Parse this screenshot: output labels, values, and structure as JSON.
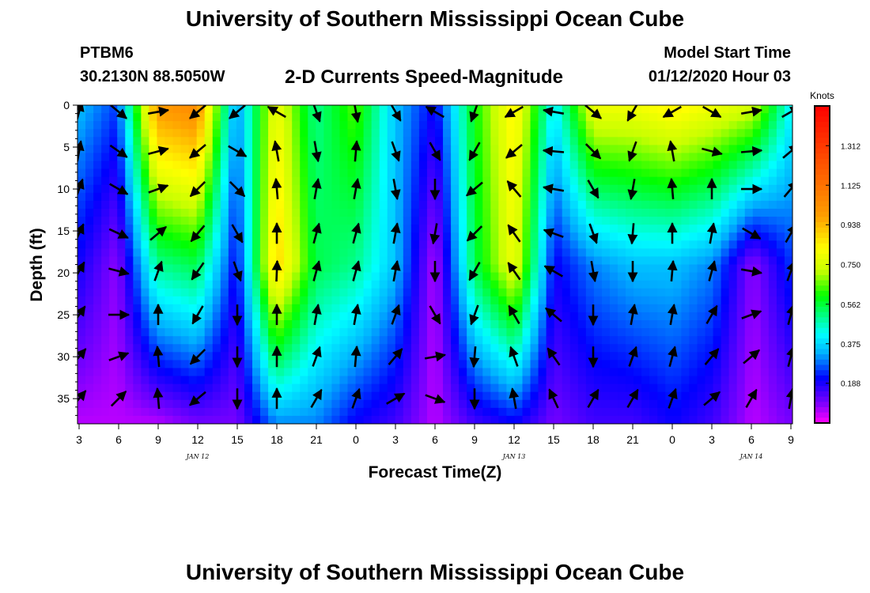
{
  "header": {
    "title": "University of Southern Mississippi Ocean Cube",
    "station_id": "PTBM6",
    "station_coords": "30.2130N 88.5050W",
    "plot_title": "2-D Currents Speed-Magnitude",
    "model_label": "Model Start Time",
    "model_date": "01/12/2020 Hour 03"
  },
  "footer": {
    "title": "University of Southern Mississippi Ocean Cube"
  },
  "chart_data": {
    "type": "heatmap",
    "title": "2-D Currents Speed-Magnitude",
    "xlabel": "Forecast Time(Z)",
    "ylabel": "Depth (ft)",
    "x_tick_labels": [
      "3",
      "6",
      "9",
      "12",
      "15",
      "18",
      "21",
      "0",
      "3",
      "6",
      "9",
      "12",
      "15",
      "18",
      "21",
      "0",
      "3",
      "6",
      "9"
    ],
    "date_labels": [
      {
        "text": "JAN 12",
        "tick_index": 3
      },
      {
        "text": "JAN 13",
        "tick_index": 11
      },
      {
        "text": "JAN 14",
        "tick_index": 17
      }
    ],
    "y_ticks": [
      0,
      5,
      10,
      15,
      20,
      25,
      30,
      35
    ],
    "ylim": [
      0,
      38
    ],
    "colorbar": {
      "title": "Knots",
      "tick_labels": [
        "1.312",
        "1.125",
        "0.938",
        "0.750",
        "0.562",
        "0.375",
        "0.188"
      ],
      "range": [
        0,
        1.5
      ]
    },
    "speed_profiles": [
      {
        "x": 3,
        "surface": 0.35,
        "mid": 0.2,
        "bottom": 0.05
      },
      {
        "x": 6,
        "surface": 0.25,
        "mid": 0.08,
        "bottom": 0.05
      },
      {
        "x": 9,
        "surface": 1.0,
        "mid": 0.5,
        "bottom": 0.05
      },
      {
        "x": 12,
        "surface": 1.05,
        "mid": 0.55,
        "bottom": 0.1
      },
      {
        "x": 15,
        "surface": 0.3,
        "mid": 0.2,
        "bottom": 0.1
      },
      {
        "x": 18,
        "surface": 0.8,
        "mid": 0.9,
        "bottom": 0.3
      },
      {
        "x": 21,
        "surface": 0.5,
        "mid": 0.55,
        "bottom": 0.3
      },
      {
        "x": 0,
        "surface": 0.65,
        "mid": 0.5,
        "bottom": 0.2
      },
      {
        "x": 3,
        "surface": 0.35,
        "mid": 0.35,
        "bottom": 0.15
      },
      {
        "x": 6,
        "surface": 0.2,
        "mid": 0.05,
        "bottom": 0.05
      },
      {
        "x": 9,
        "surface": 0.6,
        "mid": 0.55,
        "bottom": 0.15
      },
      {
        "x": 12,
        "surface": 0.85,
        "mid": 0.8,
        "bottom": 0.2
      },
      {
        "x": 15,
        "surface": 0.4,
        "mid": 0.2,
        "bottom": 0.1
      },
      {
        "x": 18,
        "surface": 0.8,
        "mid": 0.3,
        "bottom": 0.15
      },
      {
        "x": 21,
        "surface": 0.8,
        "mid": 0.35,
        "bottom": 0.15
      },
      {
        "x": 0,
        "surface": 0.85,
        "mid": 0.35,
        "bottom": 0.2
      },
      {
        "x": 3,
        "surface": 0.8,
        "mid": 0.3,
        "bottom": 0.15
      },
      {
        "x": 6,
        "surface": 0.75,
        "mid": 0.08,
        "bottom": 0.05
      },
      {
        "x": 9,
        "surface": 0.4,
        "mid": 0.25,
        "bottom": 0.1
      }
    ],
    "vector_columns": [
      {
        "x": 3,
        "dirs": [
          75,
          80,
          70,
          65,
          60,
          55,
          50,
          50
        ]
      },
      {
        "x": 6,
        "dirs": [
          -40,
          -35,
          -30,
          -25,
          -15,
          0,
          20,
          45
        ]
      },
      {
        "x": 9,
        "dirs": [
          10,
          15,
          20,
          40,
          70,
          90,
          95,
          95
        ]
      },
      {
        "x": 12,
        "dirs": [
          -140,
          -140,
          -135,
          -130,
          -125,
          -120,
          -135,
          -140
        ]
      },
      {
        "x": 15,
        "dirs": [
          -140,
          -30,
          -45,
          -60,
          -70,
          -90,
          -90,
          -90
        ]
      },
      {
        "x": 18,
        "dirs": [
          150,
          100,
          95,
          90,
          88,
          90,
          90,
          90
        ]
      },
      {
        "x": 21,
        "dirs": [
          -70,
          -80,
          80,
          75,
          75,
          80,
          70,
          60
        ]
      },
      {
        "x": 0,
        "dirs": [
          -80,
          85,
          80,
          75,
          75,
          80,
          85,
          70
        ]
      },
      {
        "x": 3,
        "dirs": [
          -60,
          -70,
          -80,
          80,
          80,
          70,
          50,
          30
        ]
      },
      {
        "x": 6,
        "dirs": [
          150,
          -60,
          -90,
          -100,
          -90,
          -60,
          10,
          -20
        ]
      },
      {
        "x": 9,
        "dirs": [
          -110,
          -120,
          -140,
          -135,
          -120,
          -110,
          -95,
          -90
        ]
      },
      {
        "x": 12,
        "dirs": [
          -150,
          -140,
          130,
          125,
          125,
          120,
          110,
          100
        ]
      },
      {
        "x": 15,
        "dirs": [
          170,
          175,
          170,
          160,
          150,
          140,
          125,
          115
        ]
      },
      {
        "x": 18,
        "dirs": [
          -40,
          -45,
          -60,
          -70,
          -80,
          -90,
          -90,
          60
        ]
      },
      {
        "x": 21,
        "dirs": [
          -120,
          -110,
          -100,
          -95,
          -90,
          80,
          70,
          60
        ]
      },
      {
        "x": 0,
        "dirs": [
          -150,
          100,
          95,
          90,
          85,
          80,
          75,
          70
        ]
      },
      {
        "x": 3,
        "dirs": [
          -30,
          -15,
          90,
          80,
          75,
          60,
          50,
          40
        ]
      },
      {
        "x": 6,
        "dirs": [
          10,
          5,
          0,
          -30,
          -10,
          20,
          40,
          60
        ]
      },
      {
        "x": 9,
        "dirs": [
          30,
          40,
          50,
          60,
          70,
          75,
          75,
          80
        ]
      }
    ]
  }
}
